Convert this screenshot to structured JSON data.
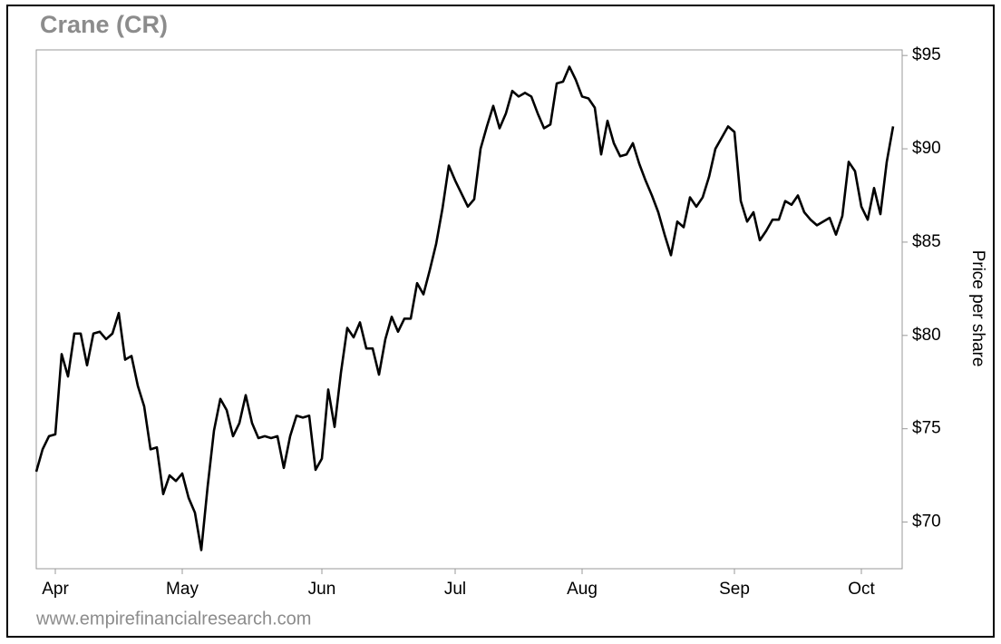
{
  "chart_data": {
    "type": "line",
    "title": "Crane (CR)",
    "y_label": "Price per share",
    "source": "www.empirefinancialresearch.com",
    "series": [
      {
        "name": "CR",
        "color": "#000000",
        "values": [
          72.7,
          73.9,
          74.6,
          74.7,
          79.0,
          77.8,
          80.1,
          80.1,
          78.4,
          80.1,
          80.2,
          79.8,
          80.1,
          81.2,
          78.7,
          78.9,
          77.3,
          76.2,
          73.9,
          74.0,
          71.5,
          72.5,
          72.2,
          72.6,
          71.3,
          70.5,
          68.5,
          71.9,
          74.9,
          76.6,
          76.0,
          74.6,
          75.3,
          76.8,
          75.3,
          74.5,
          74.6,
          74.5,
          74.6,
          72.9,
          74.6,
          75.7,
          75.6,
          75.7,
          72.8,
          73.4,
          77.1,
          75.1,
          78.0,
          80.4,
          79.9,
          80.7,
          79.3,
          79.3,
          77.9,
          79.8,
          81.0,
          80.2,
          80.9,
          80.9,
          82.8,
          82.2,
          83.5,
          84.9,
          86.8,
          89.1,
          88.3,
          87.6,
          86.9,
          87.3,
          90.0,
          91.2,
          92.3,
          91.1,
          91.9,
          93.1,
          92.8,
          93.0,
          92.8,
          91.9,
          91.1,
          91.3,
          93.5,
          93.6,
          94.4,
          93.7,
          92.8,
          92.7,
          92.2,
          89.7,
          91.5,
          90.3,
          89.6,
          89.7,
          90.3,
          89.2,
          88.3,
          87.5,
          86.6,
          85.4,
          84.3,
          86.1,
          85.8,
          87.4,
          86.9,
          87.4,
          88.5,
          90.0,
          90.6,
          91.2,
          90.9,
          87.2,
          86.1,
          86.6,
          85.1,
          85.6,
          86.2,
          86.2,
          87.2,
          87.0,
          87.5,
          86.6,
          86.2,
          85.9,
          86.1,
          86.3,
          85.4,
          86.4,
          89.3,
          88.8,
          86.9,
          86.2,
          87.9,
          86.5,
          89.3,
          91.2
        ]
      }
    ],
    "xlim": [
      0,
      135
    ],
    "xticks": [
      {
        "value": 3,
        "label": "Apr"
      },
      {
        "value": 23,
        "label": "May"
      },
      {
        "value": 45,
        "label": "Jun"
      },
      {
        "value": 66,
        "label": "Jul"
      },
      {
        "value": 86,
        "label": "Aug"
      },
      {
        "value": 110,
        "label": "Sep"
      },
      {
        "value": 130,
        "label": "Oct"
      }
    ],
    "ylim": [
      67.5,
      95.3
    ],
    "yticks": [
      {
        "value": 70,
        "label": "$70"
      },
      {
        "value": 75,
        "label": "$75"
      },
      {
        "value": 80,
        "label": "$80"
      },
      {
        "value": 85,
        "label": "$85"
      },
      {
        "value": 90,
        "label": "$90"
      },
      {
        "value": 95,
        "label": "$95"
      }
    ]
  }
}
